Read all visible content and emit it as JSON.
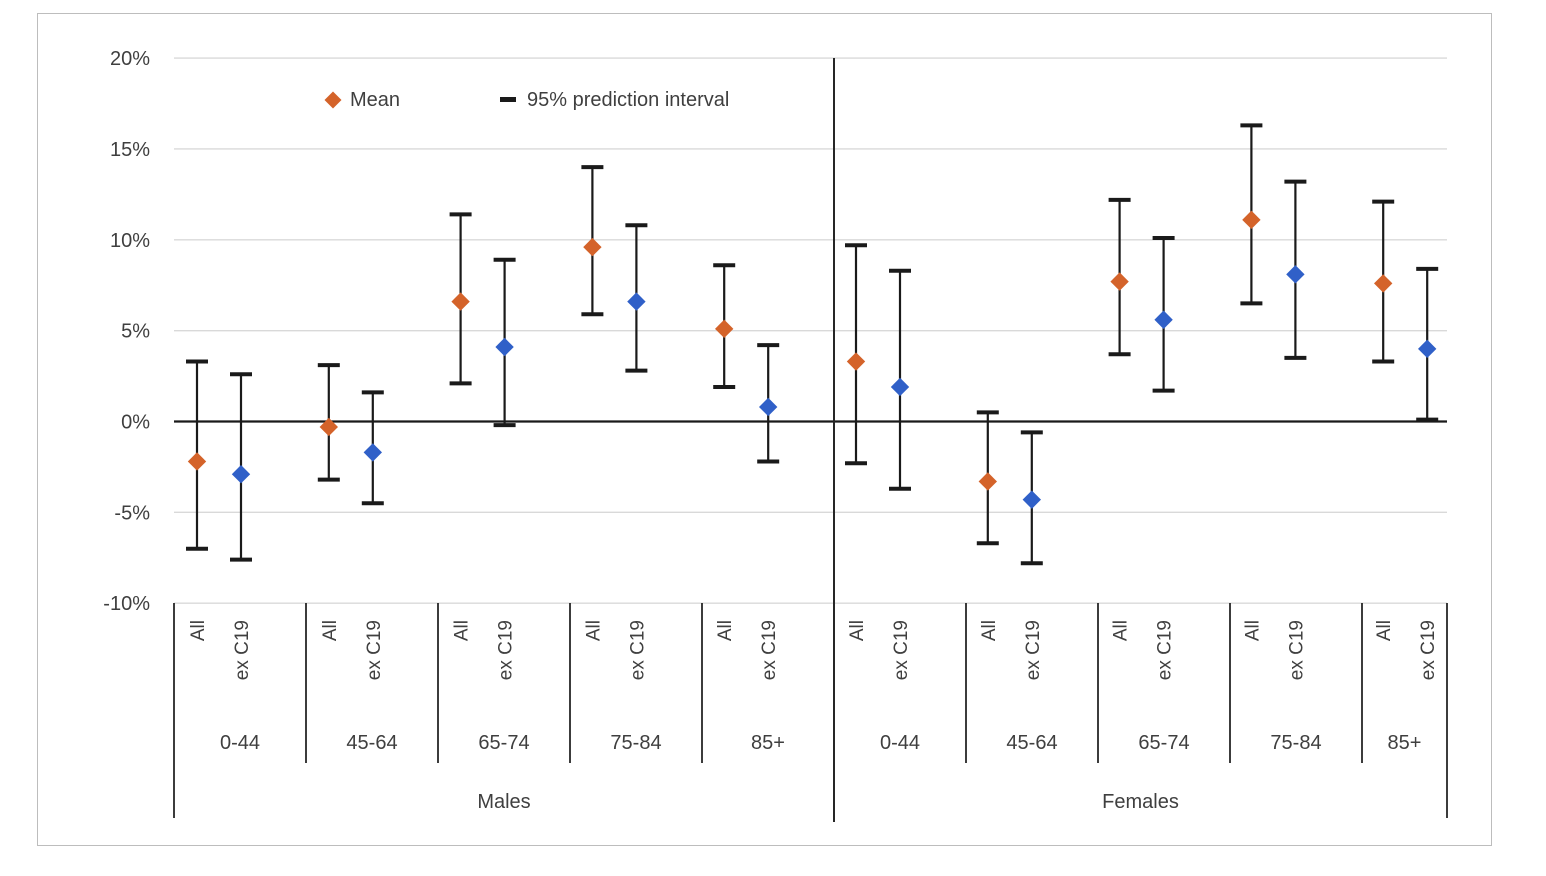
{
  "legend": {
    "mean_label": "Mean",
    "interval_label": "95% prediction interval"
  },
  "colors": {
    "mean_all": "#d4632a",
    "mean_exc19": "#3060c8",
    "interval": "#1a1a1a",
    "gridline": "#d9d9d9",
    "axis_text": "#3f3f3f",
    "divider": "#262626",
    "chart_border": "#bdbdbd"
  },
  "chart_data": {
    "type": "scatter",
    "title": "",
    "xlabel": "",
    "ylabel": "",
    "ylim": [
      -10,
      20
    ],
    "grid": true,
    "legend_position": "inside-top-left",
    "yticks": [
      {
        "value": 20,
        "label": "20%"
      },
      {
        "value": 15,
        "label": "15%"
      },
      {
        "value": 10,
        "label": "10%"
      },
      {
        "value": 5,
        "label": "5%"
      },
      {
        "value": 0,
        "label": "0%"
      },
      {
        "value": -5,
        "label": "-5%"
      },
      {
        "value": -10,
        "label": "-10%"
      }
    ],
    "series_names": [
      "All",
      "ex C19"
    ],
    "sex_groups": [
      {
        "label": "Males"
      },
      {
        "label": "Females"
      }
    ],
    "groups": [
      {
        "sex": "Males",
        "age": "0-44",
        "points": [
          {
            "series": "All",
            "mean": -2.2,
            "lo": -7.0,
            "hi": 3.3
          },
          {
            "series": "ex C19",
            "mean": -2.9,
            "lo": -7.6,
            "hi": 2.6
          }
        ]
      },
      {
        "sex": "Males",
        "age": "45-64",
        "points": [
          {
            "series": "All",
            "mean": -0.3,
            "lo": -3.2,
            "hi": 3.1
          },
          {
            "series": "ex C19",
            "mean": -1.7,
            "lo": -4.5,
            "hi": 1.6
          }
        ]
      },
      {
        "sex": "Males",
        "age": "65-74",
        "points": [
          {
            "series": "All",
            "mean": 6.6,
            "lo": 2.1,
            "hi": 11.4
          },
          {
            "series": "ex C19",
            "mean": 4.1,
            "lo": -0.2,
            "hi": 8.9
          }
        ]
      },
      {
        "sex": "Males",
        "age": "75-84",
        "points": [
          {
            "series": "All",
            "mean": 9.6,
            "lo": 5.9,
            "hi": 14.0
          },
          {
            "series": "ex C19",
            "mean": 6.6,
            "lo": 2.8,
            "hi": 10.8
          }
        ]
      },
      {
        "sex": "Males",
        "age": "85+",
        "points": [
          {
            "series": "All",
            "mean": 5.1,
            "lo": 1.9,
            "hi": 8.6
          },
          {
            "series": "ex C19",
            "mean": 0.8,
            "lo": -2.2,
            "hi": 4.2
          }
        ]
      },
      {
        "sex": "Females",
        "age": "0-44",
        "points": [
          {
            "series": "All",
            "mean": 3.3,
            "lo": -2.3,
            "hi": 9.7
          },
          {
            "series": "ex C19",
            "mean": 1.9,
            "lo": -3.7,
            "hi": 8.3
          }
        ]
      },
      {
        "sex": "Females",
        "age": "45-64",
        "points": [
          {
            "series": "All",
            "mean": -3.3,
            "lo": -6.7,
            "hi": 0.5
          },
          {
            "series": "ex C19",
            "mean": -4.3,
            "lo": -7.8,
            "hi": -0.6
          }
        ]
      },
      {
        "sex": "Females",
        "age": "65-74",
        "points": [
          {
            "series": "All",
            "mean": 7.7,
            "lo": 3.7,
            "hi": 12.2
          },
          {
            "series": "ex C19",
            "mean": 5.6,
            "lo": 1.7,
            "hi": 10.1
          }
        ]
      },
      {
        "sex": "Females",
        "age": "75-84",
        "points": [
          {
            "series": "All",
            "mean": 11.1,
            "lo": 6.5,
            "hi": 16.3
          },
          {
            "series": "ex C19",
            "mean": 8.1,
            "lo": 3.5,
            "hi": 13.2
          }
        ]
      },
      {
        "sex": "Females",
        "age": "85+",
        "points": [
          {
            "series": "All",
            "mean": 7.6,
            "lo": 3.3,
            "hi": 12.1
          },
          {
            "series": "ex C19",
            "mean": 4.0,
            "lo": 0.1,
            "hi": 8.4
          }
        ]
      }
    ]
  }
}
